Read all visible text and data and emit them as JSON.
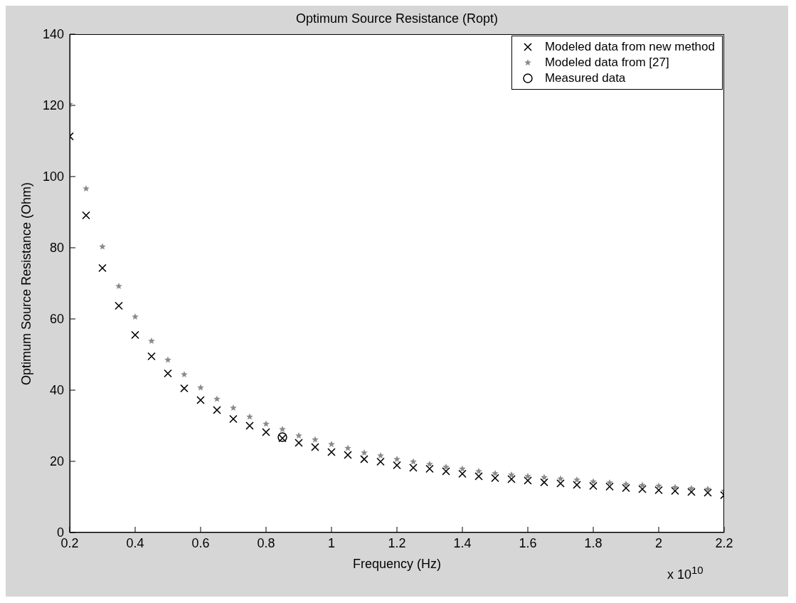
{
  "chart_data": {
    "type": "scatter",
    "title": "Optimum Source Resistance (Ropt)",
    "xlabel": "Frequency (Hz)",
    "ylabel": "Optimum Source Resistance (Ohm)",
    "annotations": [
      "x 10$^{10}$"
    ],
    "x": [
      0.2,
      0.25,
      0.3,
      0.35,
      0.4,
      0.45,
      0.5,
      0.55,
      0.6,
      0.65,
      0.7,
      0.75,
      0.8,
      0.85,
      0.9,
      0.95,
      1.0,
      1.05,
      1.1,
      1.15,
      1.2,
      1.25,
      1.3,
      1.35,
      1.4,
      1.45,
      1.5,
      1.55,
      1.6,
      1.65,
      1.7,
      1.75,
      1.8,
      1.85,
      1.9,
      1.95,
      2.0,
      2.05,
      2.1,
      2.15,
      2.2
    ],
    "series": [
      {
        "name": "Modeled data from new method",
        "color": "#000000",
        "marker": "cross",
        "values": [
          111.3,
          89.1,
          74.3,
          63.7,
          55.5,
          49.5,
          44.7,
          40.5,
          37.2,
          34.4,
          31.9,
          30.0,
          28.2,
          26.5,
          25.2,
          24.0,
          22.6,
          21.8,
          20.6,
          19.9,
          18.9,
          18.2,
          17.9,
          17.2,
          16.5,
          15.8,
          15.3,
          15.0,
          14.6,
          14.1,
          13.8,
          13.4,
          13.1,
          12.9,
          12.5,
          12.2,
          11.9,
          11.7,
          11.4,
          11.2,
          10.5
        ]
      },
      {
        "name": "Modeled data from [27]",
        "color": "#8a8a8a",
        "marker": "star",
        "values": [
          120.3,
          96.6,
          80.3,
          69.2,
          60.6,
          53.8,
          48.5,
          44.4,
          40.7,
          37.5,
          35.0,
          32.5,
          30.5,
          29.0,
          27.2,
          26.1,
          24.8,
          23.7,
          22.4,
          21.6,
          20.6,
          19.9,
          19.2,
          18.4,
          17.9,
          17.2,
          16.6,
          16.2,
          15.8,
          15.5,
          15.1,
          14.8,
          14.3,
          14.0,
          13.6,
          13.3,
          13.1,
          12.7,
          12.4,
          12.2,
          11.7
        ]
      },
      {
        "name": "Measured data",
        "color": "#000000",
        "marker": "circle",
        "x": [
          0.85
        ],
        "values": [
          26.8
        ]
      }
    ],
    "xlim": [
      0.2,
      2.2
    ],
    "xticks": [
      0.2,
      0.4,
      0.6,
      0.8,
      1,
      1.2,
      1.4,
      1.6,
      1.8,
      2,
      2.2
    ],
    "ylim": [
      0,
      140
    ],
    "yticks": [
      0,
      20,
      40,
      60,
      80,
      100,
      120,
      140
    ],
    "legend": "top right"
  }
}
